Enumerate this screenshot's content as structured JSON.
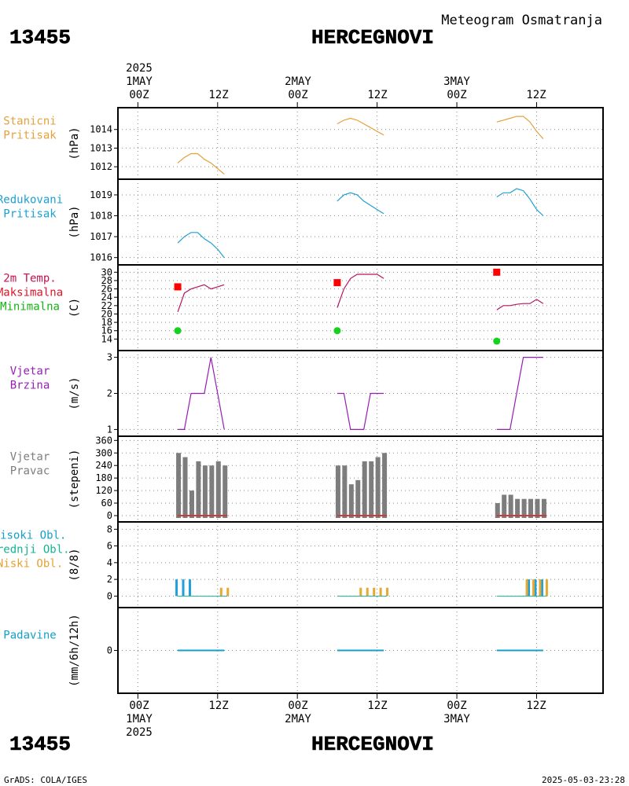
{
  "header": {
    "meteogram_label": "Meteogram Osmatranja",
    "station_id": "13455",
    "station_name": "HERCEGNOVI"
  },
  "footer": {
    "software_credit": "GrADS: COLA/IGES",
    "timestamp": "2025-05-03-23:28"
  },
  "time_axis": {
    "year": "2025",
    "days": [
      "1MAY",
      "2MAY",
      "3MAY"
    ],
    "tick_labels": [
      "00Z",
      "12Z",
      "00Z",
      "12Z",
      "00Z",
      "12Z"
    ],
    "hours": [
      0,
      12,
      24,
      36,
      48,
      60
    ],
    "range_hours": [
      -3,
      70
    ]
  },
  "chart_data": [
    {
      "id": "station-pressure",
      "type": "line",
      "panel_labels": [
        "Stanicni",
        "Pritisak"
      ],
      "ylabel": "(hPa)",
      "color": "#e6a03c",
      "ylim": [
        1011.5,
        1015.0
      ],
      "yticks": [
        1012,
        1013,
        1014
      ],
      "segments": [
        {
          "x": [
            6,
            7,
            8,
            9,
            10,
            11,
            12,
            13
          ],
          "y": [
            1012.2,
            1012.5,
            1012.7,
            1012.7,
            1012.4,
            1012.2,
            1011.9,
            1011.6
          ]
        },
        {
          "x": [
            30,
            31,
            32,
            33,
            34,
            35,
            36,
            37
          ],
          "y": [
            1014.3,
            1014.5,
            1014.6,
            1014.5,
            1014.3,
            1014.1,
            1013.9,
            1013.7
          ]
        },
        {
          "x": [
            54,
            55,
            56,
            57,
            58,
            59,
            60,
            61
          ],
          "y": [
            1014.4,
            1014.5,
            1014.6,
            1014.7,
            1014.7,
            1014.4,
            1013.9,
            1013.5
          ]
        }
      ]
    },
    {
      "id": "reduced-pressure",
      "type": "line",
      "panel_labels": [
        "Redukovani",
        "Pritisak"
      ],
      "ylabel": "(hPa)",
      "color": "#1ea0d2",
      "ylim": [
        1015.8,
        1019.6
      ],
      "yticks": [
        1016,
        1017,
        1018,
        1019
      ],
      "segments": [
        {
          "x": [
            6,
            7,
            8,
            9,
            10,
            11,
            12,
            13
          ],
          "y": [
            1016.7,
            1017.0,
            1017.2,
            1017.2,
            1016.9,
            1016.7,
            1016.4,
            1016.0
          ]
        },
        {
          "x": [
            30,
            31,
            32,
            33,
            34,
            35,
            36,
            37
          ],
          "y": [
            1018.7,
            1019.0,
            1019.1,
            1019.0,
            1018.7,
            1018.5,
            1018.3,
            1018.1
          ]
        },
        {
          "x": [
            54,
            55,
            56,
            57,
            58,
            59,
            60,
            61
          ],
          "y": [
            1018.9,
            1019.1,
            1019.1,
            1019.3,
            1019.2,
            1018.8,
            1018.3,
            1018.0
          ]
        }
      ]
    },
    {
      "id": "temperature",
      "type": "line",
      "panel_labels": [
        "2m Temp.",
        "Maksimalna",
        "Minimalna"
      ],
      "label_colors": [
        "#c8104e",
        "#dc1428",
        "#14b414"
      ],
      "ylabel": "(C)",
      "color": "#b41464",
      "max_color": "#ff0000",
      "min_color": "#14d21e",
      "ylim": [
        12,
        31
      ],
      "yticks": [
        14,
        16,
        18,
        20,
        22,
        24,
        26,
        28,
        30
      ],
      "segments": [
        {
          "x": [
            6,
            7,
            8,
            9,
            10,
            11,
            12,
            13
          ],
          "y": [
            20.5,
            25.0,
            26.0,
            26.5,
            27.0,
            26.0,
            26.5,
            27.0
          ]
        },
        {
          "x": [
            30,
            31,
            32,
            33,
            34,
            35,
            36,
            37
          ],
          "y": [
            21.5,
            26.0,
            28.5,
            29.5,
            29.5,
            29.5,
            29.5,
            28.5
          ]
        },
        {
          "x": [
            54,
            55,
            56,
            57,
            58,
            59,
            60,
            61
          ],
          "y": [
            21.0,
            22.0,
            22.0,
            22.3,
            22.5,
            22.5,
            23.5,
            22.5
          ]
        }
      ],
      "max_points": [
        {
          "x": 6,
          "y": 26.5
        },
        {
          "x": 30,
          "y": 27.5
        },
        {
          "x": 54,
          "y": 30.0
        }
      ],
      "min_points": [
        {
          "x": 6,
          "y": 16.0
        },
        {
          "x": 30,
          "y": 16.0
        },
        {
          "x": 54,
          "y": 13.5
        }
      ]
    },
    {
      "id": "wind-speed",
      "type": "line",
      "panel_labels": [
        "Vjetar",
        "Brzina"
      ],
      "ylabel": "(m/s)",
      "color": "#961eb4",
      "ylim": [
        0.9,
        3.1
      ],
      "yticks": [
        1,
        2,
        3
      ],
      "segments": [
        {
          "x": [
            6,
            7,
            8,
            9,
            10,
            11,
            12,
            13
          ],
          "y": [
            1,
            1,
            2,
            2,
            2,
            3,
            2,
            1
          ]
        },
        {
          "x": [
            30,
            31,
            32,
            33,
            34,
            35,
            36,
            37
          ],
          "y": [
            2,
            2,
            1,
            1,
            1,
            2,
            2,
            2
          ]
        },
        {
          "x": [
            54,
            55,
            56,
            57,
            58,
            59,
            60,
            61
          ],
          "y": [
            1,
            1,
            1,
            2,
            3,
            3,
            3,
            3
          ]
        }
      ]
    },
    {
      "id": "wind-direction",
      "type": "bar",
      "panel_labels": [
        "Vjetar",
        "Pravac"
      ],
      "ylabel": "(stepeni)",
      "color": "#7d7d7d",
      "baseline_color": "#c83c3c",
      "ylim": [
        -15,
        365
      ],
      "yticks": [
        0,
        60,
        120,
        180,
        240,
        300,
        360
      ],
      "x": [
        6,
        7,
        8,
        9,
        10,
        11,
        12,
        13,
        30,
        31,
        32,
        33,
        34,
        35,
        36,
        37,
        54,
        55,
        56,
        57,
        58,
        59,
        60,
        61
      ],
      "values": [
        300,
        280,
        120,
        260,
        240,
        240,
        260,
        240,
        240,
        240,
        150,
        170,
        260,
        260,
        280,
        300,
        60,
        100,
        100,
        80,
        80,
        80,
        80,
        80
      ]
    },
    {
      "id": "clouds",
      "type": "bar",
      "panel_labels": [
        "Visoki Obl.",
        "Srednji Obl.",
        "Niski Obl."
      ],
      "label_colors": [
        "#14a0c8",
        "#14b496",
        "#e6a032"
      ],
      "ylabel": "(8/8)",
      "ylim": [
        -1,
        8.5
      ],
      "yticks": [
        0,
        2,
        4,
        6,
        8
      ],
      "series": [
        {
          "name": "Visoki Obl.",
          "color": "#1ea0dc",
          "x": [
            6,
            7,
            8,
            9,
            10,
            11,
            12,
            13,
            30,
            31,
            32,
            33,
            34,
            35,
            36,
            37,
            54,
            55,
            56,
            57,
            58,
            59,
            60,
            61
          ],
          "values": [
            2,
            2,
            2,
            0,
            0,
            0,
            0,
            0,
            0,
            0,
            0,
            0,
            0,
            0,
            0,
            0,
            0,
            0,
            0,
            0,
            0,
            2,
            2,
            2
          ]
        },
        {
          "name": "Srednji Obl.",
          "color": "#14b496",
          "x": [
            6,
            7,
            8,
            9,
            10,
            11,
            12,
            13,
            30,
            31,
            32,
            33,
            34,
            35,
            36,
            37,
            54,
            55,
            56,
            57,
            58,
            59,
            60,
            61
          ],
          "values": [
            0,
            0,
            0,
            0,
            0,
            0,
            0,
            0,
            0,
            0,
            0,
            0,
            0,
            0,
            0,
            0,
            0,
            0,
            0,
            0,
            0,
            0,
            0,
            0
          ]
        },
        {
          "name": "Niski Obl.",
          "color": "#e6aa32",
          "x": [
            6,
            7,
            8,
            9,
            10,
            11,
            12,
            13,
            30,
            31,
            32,
            33,
            34,
            35,
            36,
            37,
            54,
            55,
            56,
            57,
            58,
            59,
            60,
            61
          ],
          "values": [
            0,
            0,
            0,
            0,
            0,
            0,
            1,
            1,
            0,
            0,
            0,
            1,
            1,
            1,
            1,
            1,
            0,
            0,
            0,
            0,
            2,
            2,
            2,
            2
          ]
        }
      ]
    },
    {
      "id": "precipitation",
      "type": "line",
      "panel_labels": [
        "Padavine"
      ],
      "label_colors": [
        "#14a0c8"
      ],
      "ylabel": "(mm/6h/12h)",
      "color": "#14a0c8",
      "ylim": [
        -1.5,
        1.5
      ],
      "yticks": [
        0
      ],
      "segments": [
        {
          "x": [
            6,
            13
          ],
          "y": [
            0,
            0
          ]
        },
        {
          "x": [
            30,
            37
          ],
          "y": [
            0,
            0
          ]
        },
        {
          "x": [
            54,
            61
          ],
          "y": [
            0,
            0
          ]
        }
      ]
    }
  ]
}
